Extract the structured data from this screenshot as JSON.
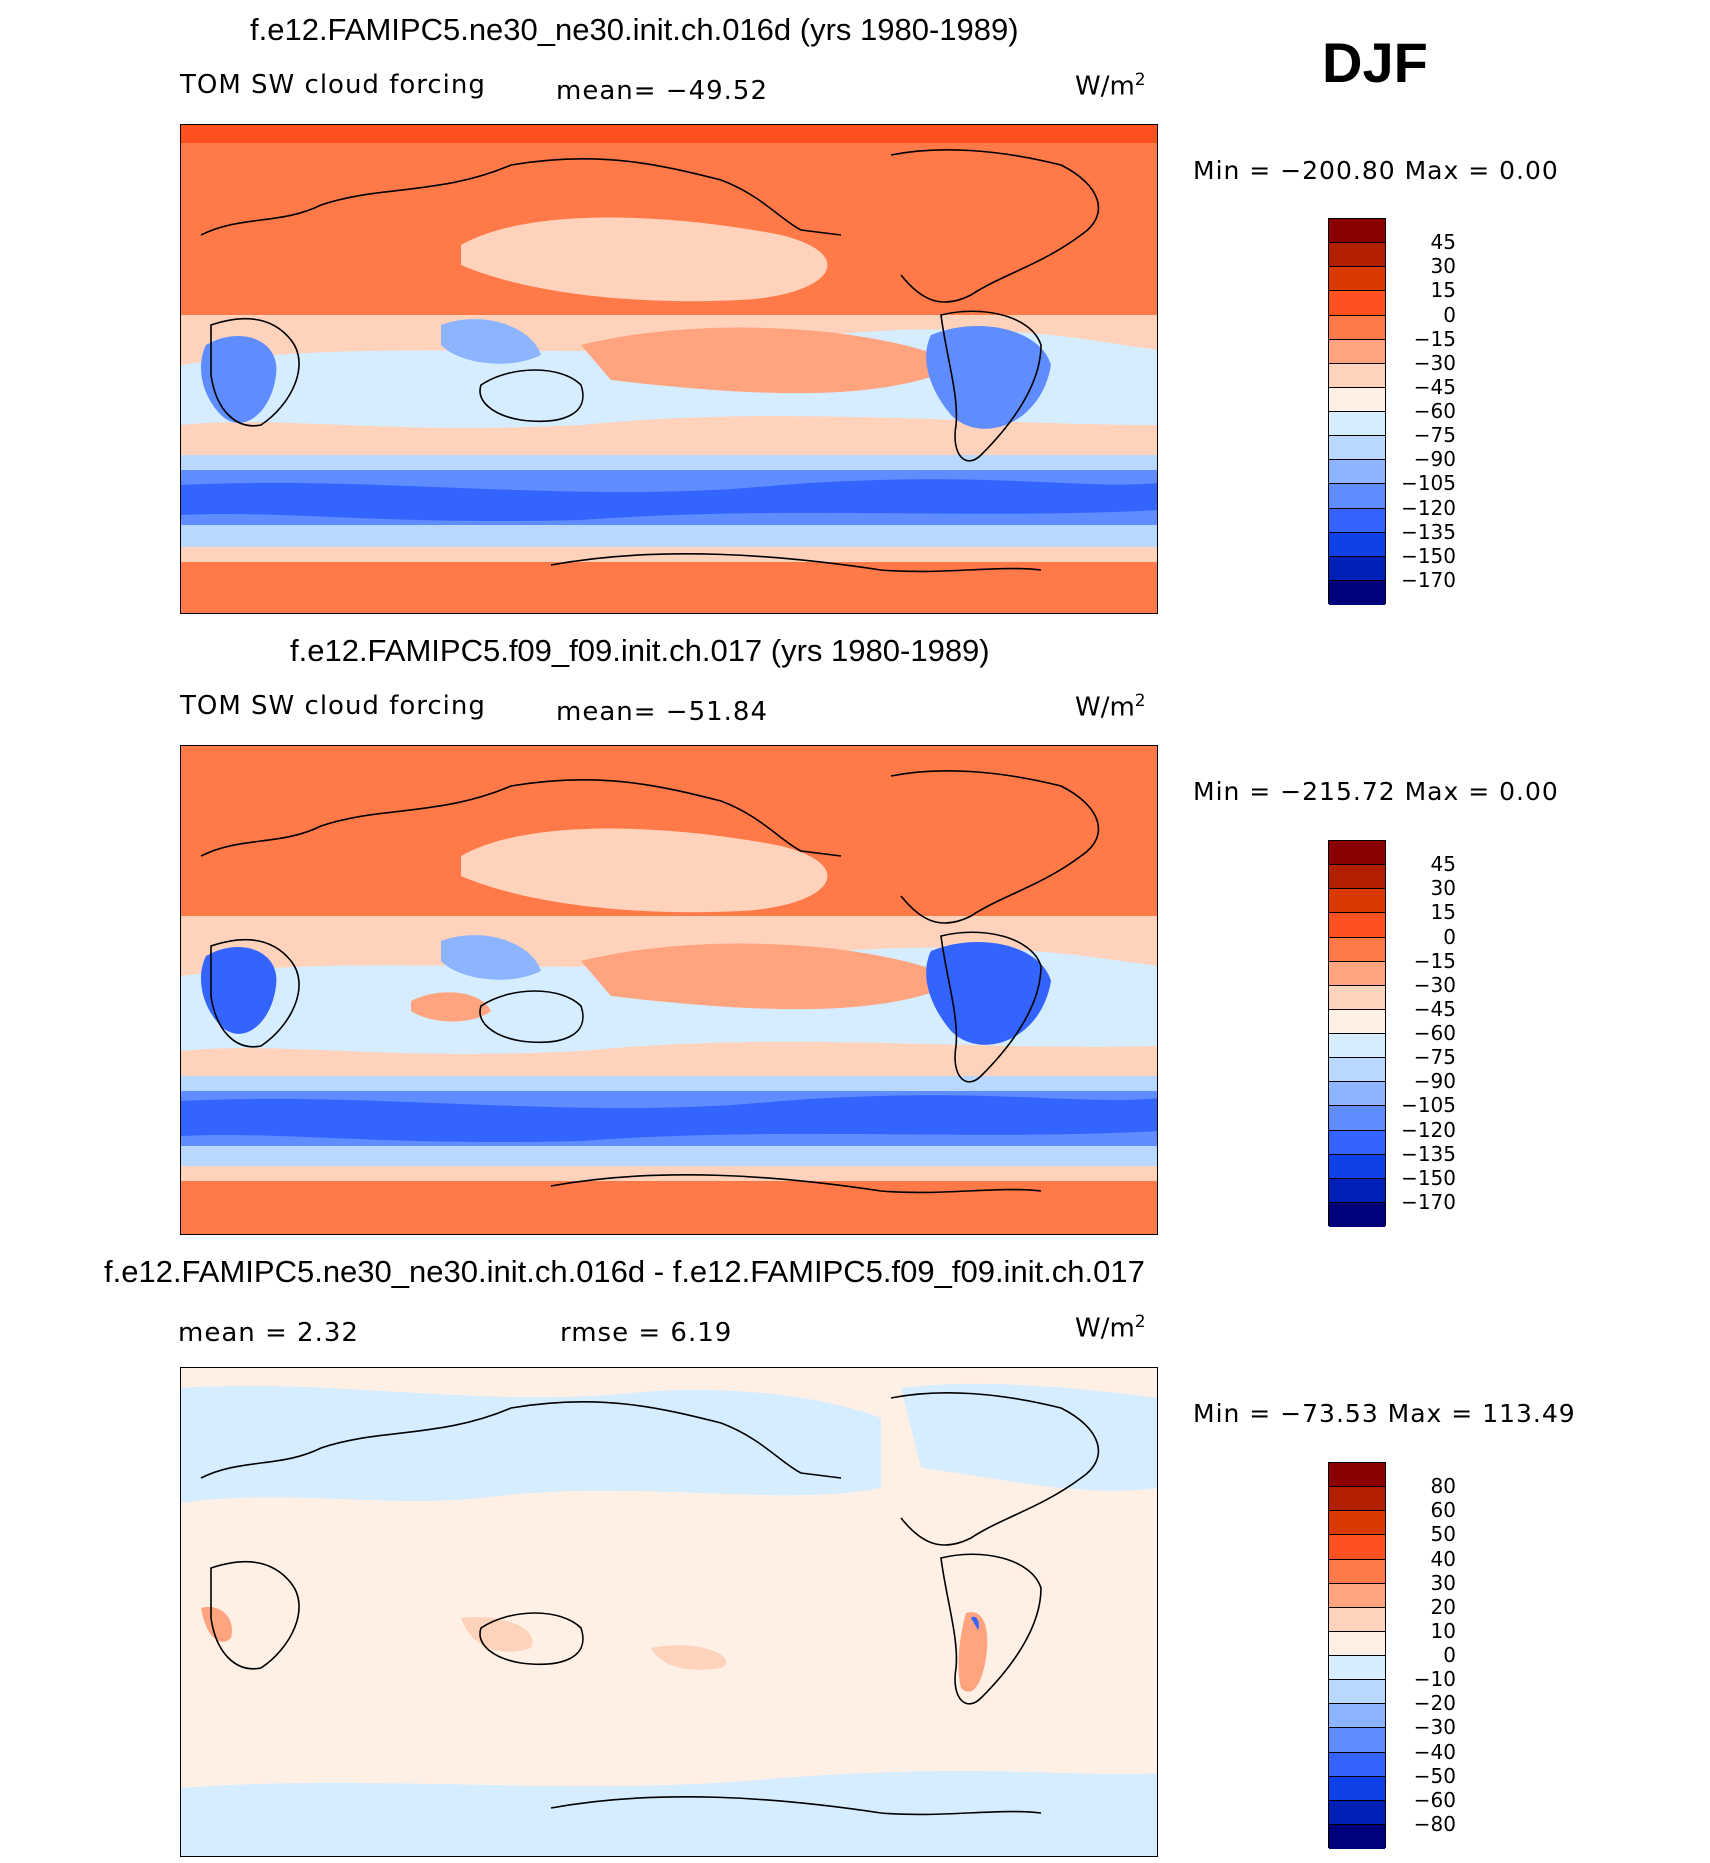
{
  "season": "DJF",
  "panels": [
    {
      "title": "f.e12.FAMIPC5.ne30_ne30.init.ch.016d (yrs 1980-1989)",
      "left_label": "TOM SW cloud forcing",
      "center_label": "mean= −49.52",
      "units_base": "W/m",
      "units_exp": "2",
      "min_max": "Min = −200.80 Max =    0.00",
      "colorbar_colors": [
        "#8b0000",
        "#b22000",
        "#d93a00",
        "#ff5020",
        "#ff7a48",
        "#ffa47e",
        "#ffd2bc",
        "#fff0e6",
        "#d6ecff",
        "#b9d8ff",
        "#8cb4ff",
        "#5f8cff",
        "#3464ff",
        "#1040e8",
        "#0020b8",
        "#00007a"
      ],
      "colorbar_labels": [
        "45",
        "30",
        "15",
        "0",
        "−15",
        "−30",
        "−45",
        "−60",
        "−75",
        "−90",
        "−105",
        "−120",
        "−135",
        "−150",
        "−170"
      ]
    },
    {
      "title": "f.e12.FAMIPC5.f09_f09.init.ch.017 (yrs 1980-1989)",
      "left_label": "TOM SW cloud forcing",
      "center_label": "mean= −51.84",
      "units_base": "W/m",
      "units_exp": "2",
      "min_max": "Min = −215.72 Max =    0.00",
      "colorbar_colors": [
        "#8b0000",
        "#b22000",
        "#d93a00",
        "#ff5020",
        "#ff7a48",
        "#ffa47e",
        "#ffd2bc",
        "#fff0e6",
        "#d6ecff",
        "#b9d8ff",
        "#8cb4ff",
        "#5f8cff",
        "#3464ff",
        "#1040e8",
        "#0020b8",
        "#00007a"
      ],
      "colorbar_labels": [
        "45",
        "30",
        "15",
        "0",
        "−15",
        "−30",
        "−45",
        "−60",
        "−75",
        "−90",
        "−105",
        "−120",
        "−135",
        "−150",
        "−170"
      ]
    },
    {
      "title": "f.e12.FAMIPC5.ne30_ne30.init.ch.016d - f.e12.FAMIPC5.f09_f09.init.ch.017",
      "left_label": "mean =    2.32",
      "center_label": "rmse =    6.19",
      "units_base": "W/m",
      "units_exp": "2",
      "min_max": "Min = −73.53 Max = 113.49",
      "colorbar_colors": [
        "#8b0000",
        "#b22000",
        "#d93a00",
        "#ff5020",
        "#ff7a48",
        "#ffa47e",
        "#ffd2bc",
        "#fff0e6",
        "#d6ecff",
        "#b9d8ff",
        "#8cb4ff",
        "#5f8cff",
        "#3464ff",
        "#1040e8",
        "#0020b8",
        "#00007a"
      ],
      "colorbar_labels": [
        "80",
        "60",
        "50",
        "40",
        "30",
        "20",
        "10",
        "0",
        "−10",
        "−20",
        "−30",
        "−40",
        "−50",
        "−60",
        "−80"
      ]
    }
  ]
}
